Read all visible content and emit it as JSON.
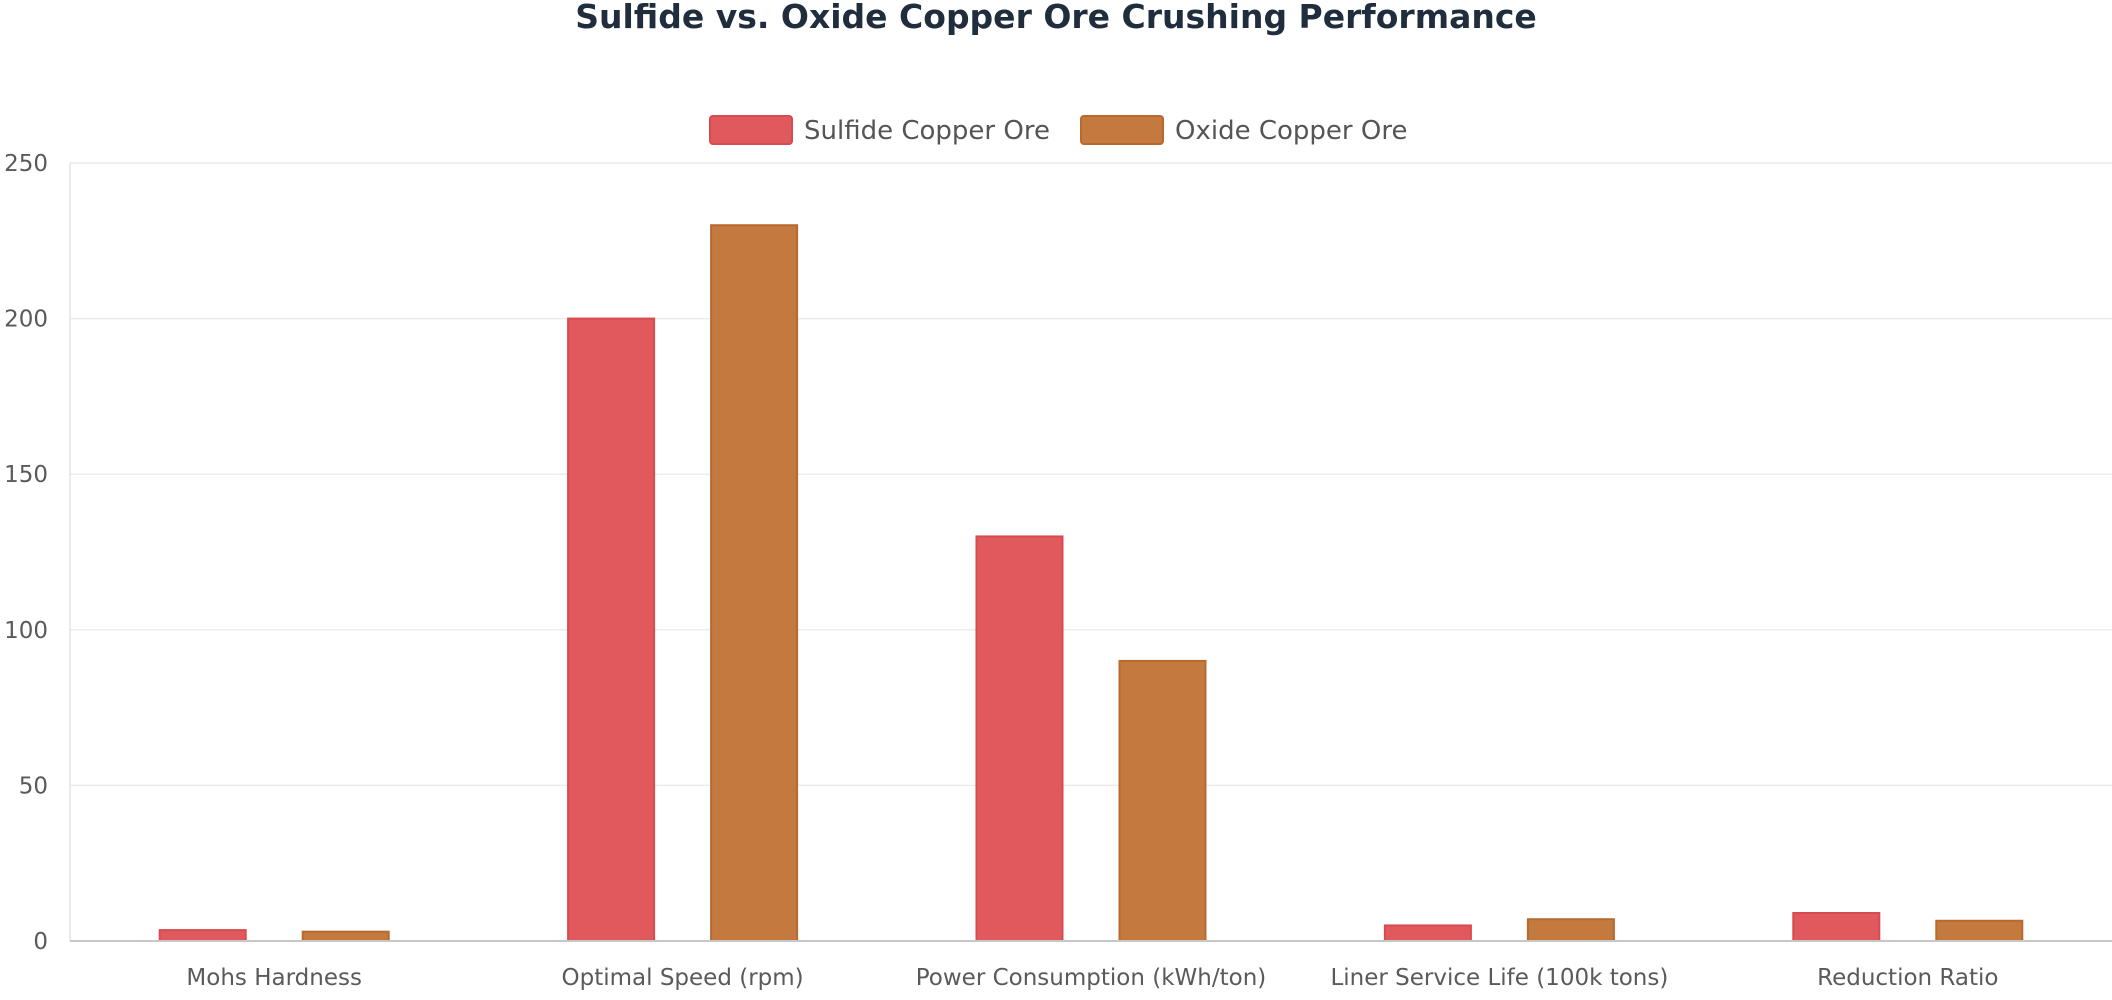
{
  "chart_data": {
    "type": "bar",
    "title": "Sulfide vs. Oxide Copper Ore Crushing Performance",
    "categories": [
      "Mohs Hardness",
      "Optimal Speed (rpm)",
      "Power Consumption (kWh/ton)",
      "Liner Service Life (100k tons)",
      "Reduction Ratio"
    ],
    "series": [
      {
        "name": "Sulfide Copper Ore",
        "values": [
          3.5,
          200,
          130,
          5,
          9
        ],
        "color": "#e05a5d",
        "edge": "#d94a4e"
      },
      {
        "name": "Oxide Copper Ore",
        "values": [
          3,
          230,
          90,
          7,
          6.5
        ],
        "color": "#c47a3f",
        "edge": "#b8692f"
      }
    ],
    "ylim": [
      0,
      250
    ],
    "yticks": [
      0,
      50,
      100,
      150,
      200,
      250
    ],
    "grid": true,
    "legend": "top-center"
  }
}
